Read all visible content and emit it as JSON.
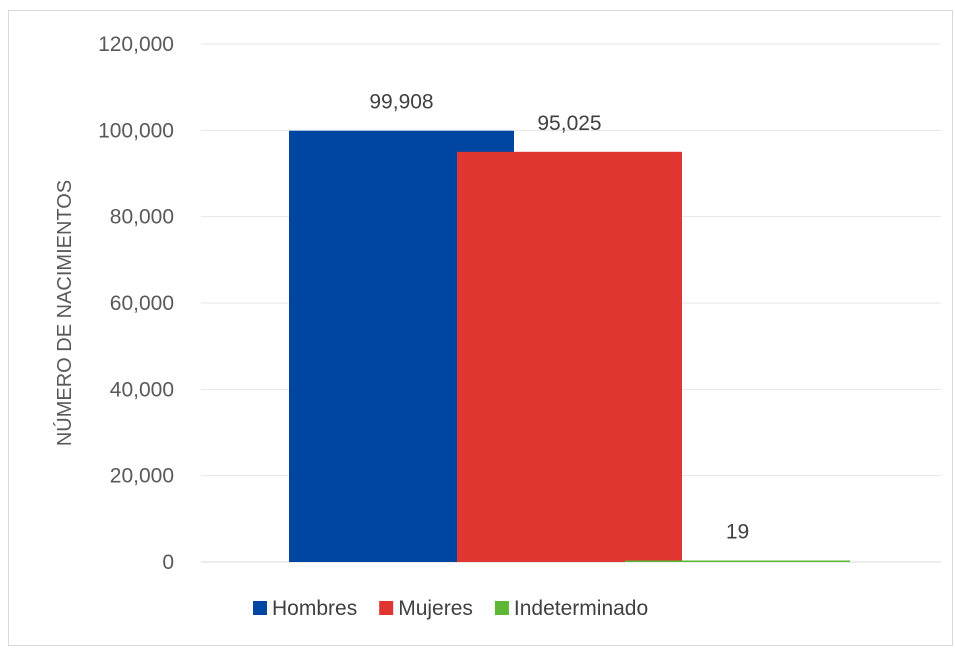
{
  "chart_data": {
    "type": "bar",
    "ylabel": "NÚMERO DE NACIMIENTOS",
    "ylim": [
      0,
      120000
    ],
    "yticks": [
      0,
      20000,
      40000,
      60000,
      80000,
      100000,
      120000
    ],
    "ytick_labels": [
      "0",
      "20,000",
      "40,000",
      "60,000",
      "80,000",
      "100,000",
      "120,000"
    ],
    "grid": true,
    "legend_position": "bottom",
    "series": [
      {
        "name": "Hombres",
        "value": 99908,
        "label": "99,908",
        "color": "#0045a1"
      },
      {
        "name": "Mujeres",
        "value": 95025,
        "label": "95,025",
        "color": "#e03531"
      },
      {
        "name": "Indeterminado",
        "value": 19,
        "label": "19",
        "color": "#5bb833"
      }
    ]
  }
}
